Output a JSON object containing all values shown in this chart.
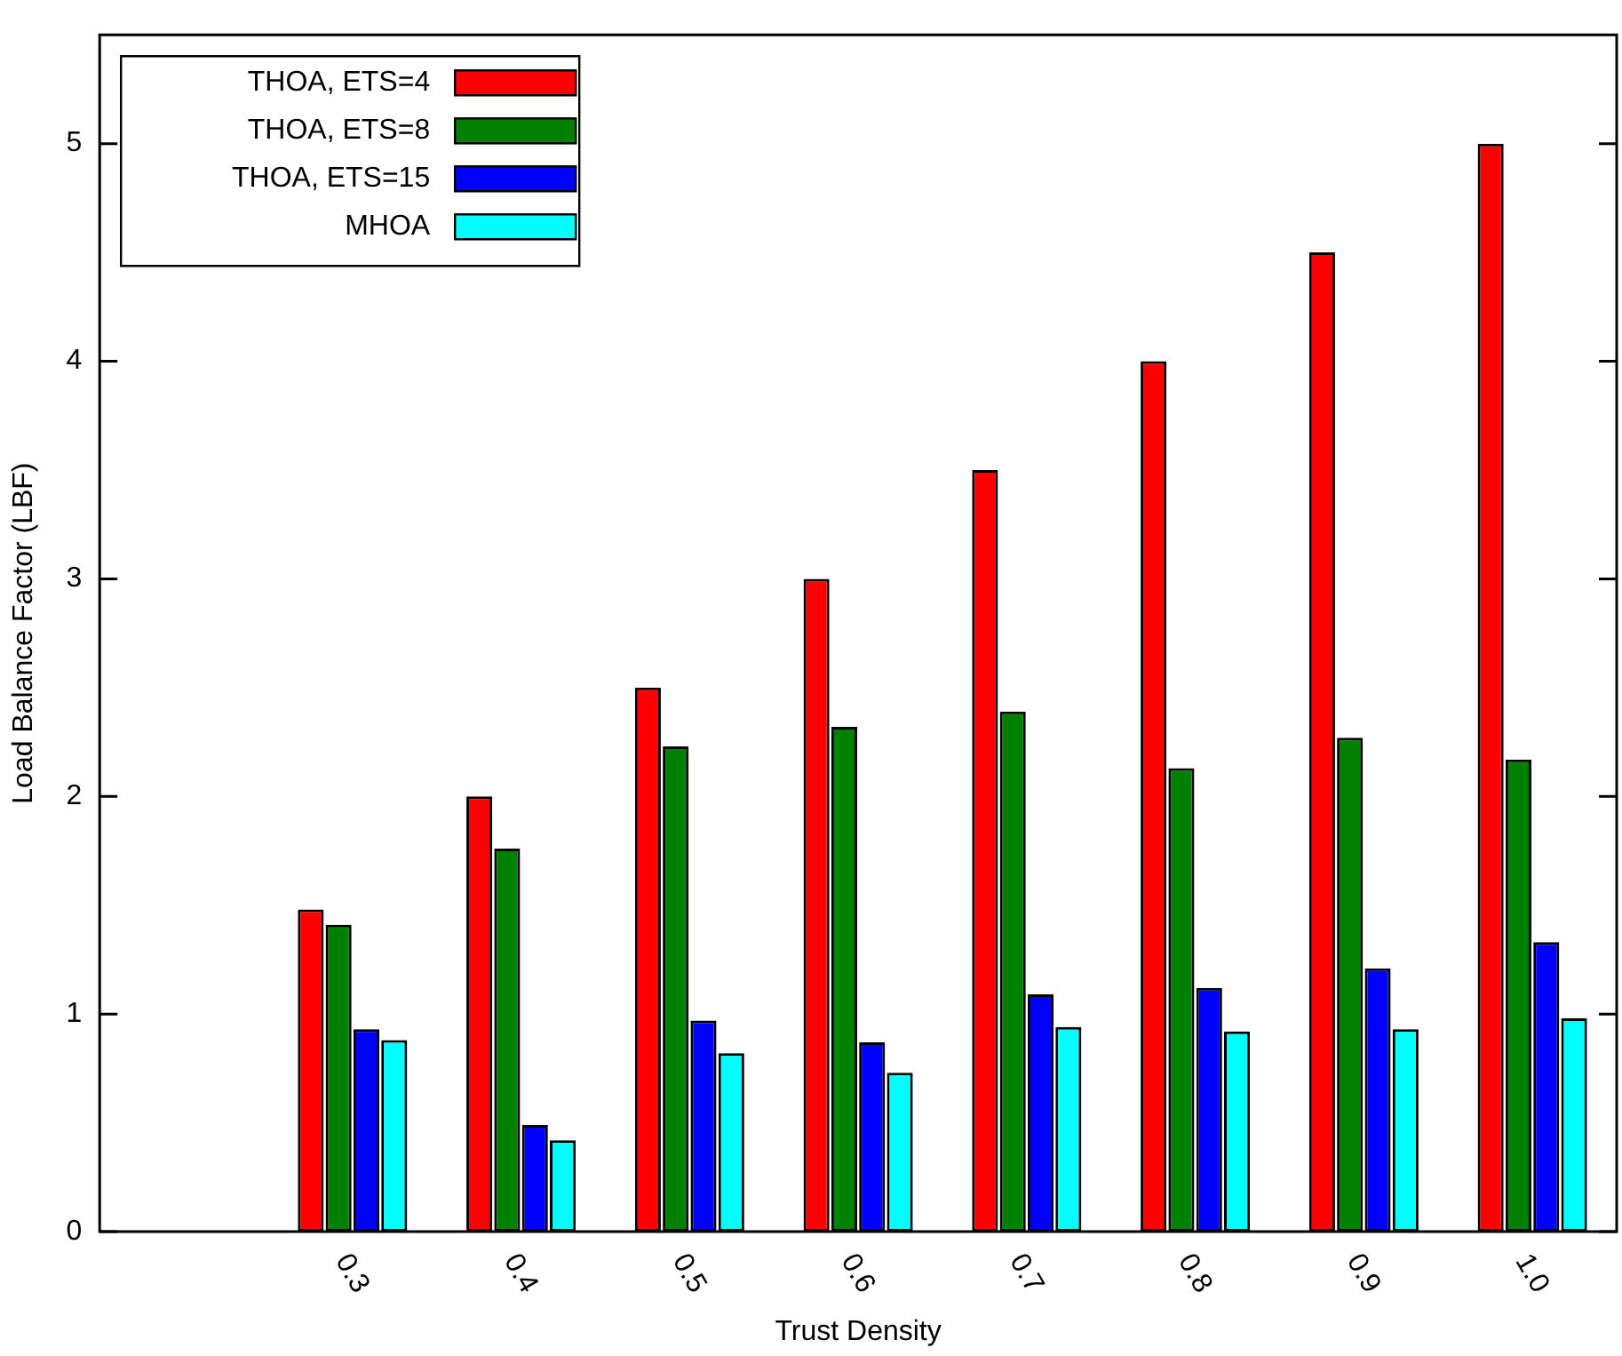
{
  "chart_data": {
    "type": "bar",
    "xlabel": "Trust Density",
    "ylabel": "Load Balance Factor (LBF)",
    "categories": [
      null,
      "0.3",
      "0.4",
      "0.5",
      "0.6",
      "0.7",
      "0.8",
      "0.9",
      "1.0"
    ],
    "series": [
      {
        "name": "THOA, ETS=4",
        "color": "#ff0000",
        "values": [
          null,
          1.48,
          2.0,
          2.5,
          3.0,
          3.5,
          4.0,
          4.5,
          5.0
        ]
      },
      {
        "name": "THOA, ETS=8",
        "color": "#008000",
        "values": [
          null,
          1.41,
          1.76,
          2.23,
          2.32,
          2.39,
          2.13,
          2.27,
          2.17
        ]
      },
      {
        "name": "THOA, ETS=15",
        "color": "#0000ff",
        "values": [
          null,
          0.93,
          0.49,
          0.97,
          0.87,
          1.09,
          1.12,
          1.21,
          1.33
        ]
      },
      {
        "name": "MHOA",
        "color": "#00ffff",
        "values": [
          null,
          0.88,
          0.42,
          0.82,
          0.73,
          0.94,
          0.92,
          0.93,
          0.98
        ]
      }
    ],
    "ylim": [
      0,
      5.5
    ],
    "yticks": [
      0,
      1,
      2,
      3,
      4,
      5
    ],
    "grid": false,
    "legend": "top left"
  }
}
